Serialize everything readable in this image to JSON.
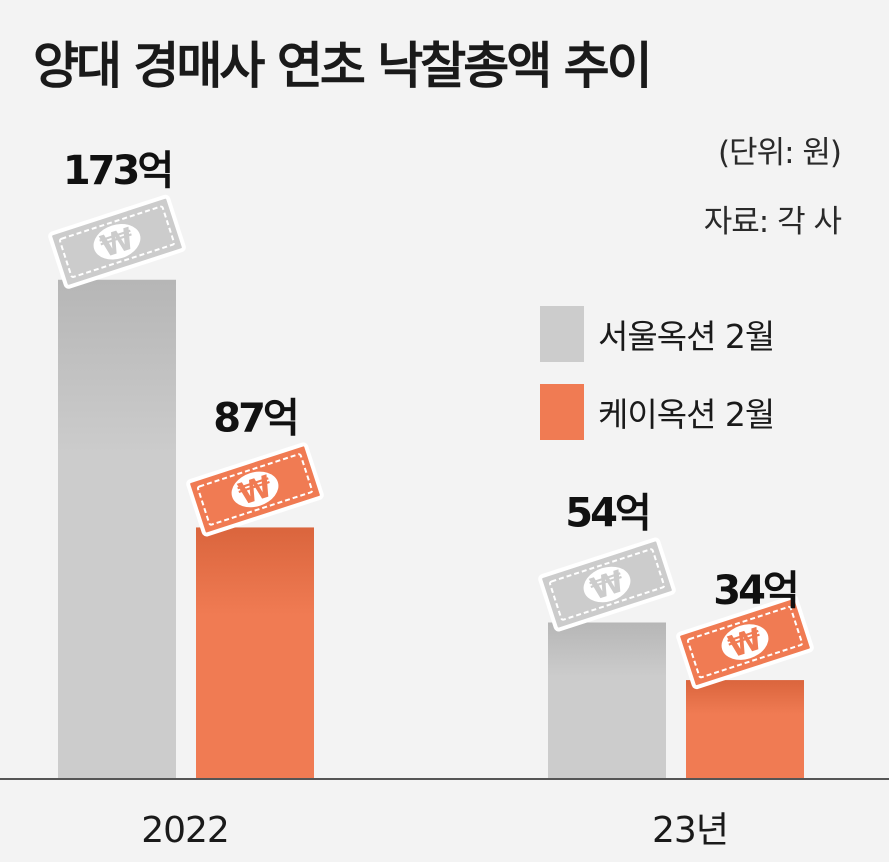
{
  "title": "양대 경매사 연초 낙찰총액 추이",
  "unit_note": "(단위: 원)",
  "source_note": "자료: 각 사",
  "colors": {
    "background": "#f3f3f3",
    "seoul": "#cccccc",
    "kei": "#f07b53",
    "axis": "#555555"
  },
  "chart_data": {
    "type": "bar",
    "categories": [
      "2022",
      "23년"
    ],
    "series": [
      {
        "name": "서울옥션 2월",
        "values": [
          173,
          54
        ],
        "value_labels": [
          "173억",
          "54억"
        ],
        "color": "#cccccc"
      },
      {
        "name": "케이옥션 2월",
        "values": [
          87,
          34
        ],
        "value_labels": [
          "87억",
          "34억"
        ],
        "color": "#f07b53"
      }
    ],
    "ylim": [
      0,
      200
    ],
    "legend_position": "right",
    "grid": false,
    "bar_decoration": "won-banknote-icon"
  }
}
